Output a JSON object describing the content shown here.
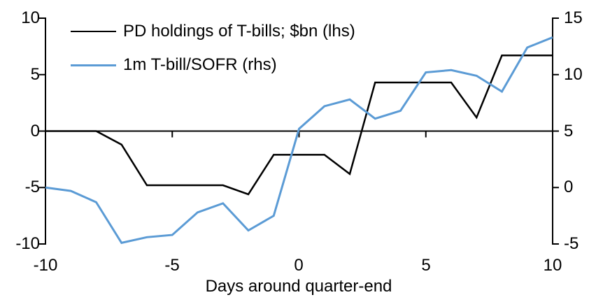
{
  "chart_data": {
    "type": "line",
    "title": "",
    "xlabel": "Days around quarter-end",
    "grid": false,
    "legend_position": "top-left",
    "x_axis": {
      "min": -10,
      "max": 10,
      "tick_values": [
        -10,
        -5,
        0,
        5,
        10
      ],
      "labels": [
        "-10",
        "-5",
        "0",
        "5",
        "10"
      ]
    },
    "left_axis": {
      "min": -10,
      "max": 10,
      "tick_values": [
        10,
        5,
        0,
        -5,
        -10
      ],
      "labels": [
        "10",
        "5",
        "0",
        "-5",
        "-10"
      ]
    },
    "right_axis": {
      "min": -5,
      "max": 15,
      "tick_values": [
        15,
        10,
        5,
        0,
        -5
      ],
      "labels": [
        "15",
        "10",
        "5",
        "0",
        "-5"
      ]
    },
    "x": [
      -10,
      -9,
      -8,
      -7,
      -6,
      -5,
      -4,
      -3,
      -2,
      -1,
      0,
      1,
      2,
      3,
      4,
      5,
      6,
      7,
      8,
      9,
      10
    ],
    "series": [
      {
        "name": "PD holdings of T-bills; $bn (lhs)",
        "axis": "lhs",
        "color": "#000000",
        "stroke_width": 2.5,
        "values": [
          0,
          0,
          0,
          -1.2,
          -4.8,
          -4.8,
          -4.8,
          -4.8,
          -5.6,
          -2.1,
          -2.1,
          -2.1,
          -3.8,
          4.3,
          4.3,
          4.3,
          4.3,
          1.2,
          6.7,
          6.7,
          6.7
        ]
      },
      {
        "name": "1m T-bill/SOFR (rhs)",
        "axis": "rhs",
        "color": "#5B9BD5",
        "stroke_width": 3,
        "values": [
          0.0,
          -0.3,
          -1.3,
          -4.9,
          -4.4,
          -4.2,
          -2.2,
          -1.4,
          -3.8,
          -2.5,
          5.2,
          7.2,
          7.8,
          6.1,
          6.8,
          10.2,
          10.4,
          9.9,
          8.5,
          12.4,
          13.3
        ]
      }
    ],
    "axis_color": "#000000"
  }
}
